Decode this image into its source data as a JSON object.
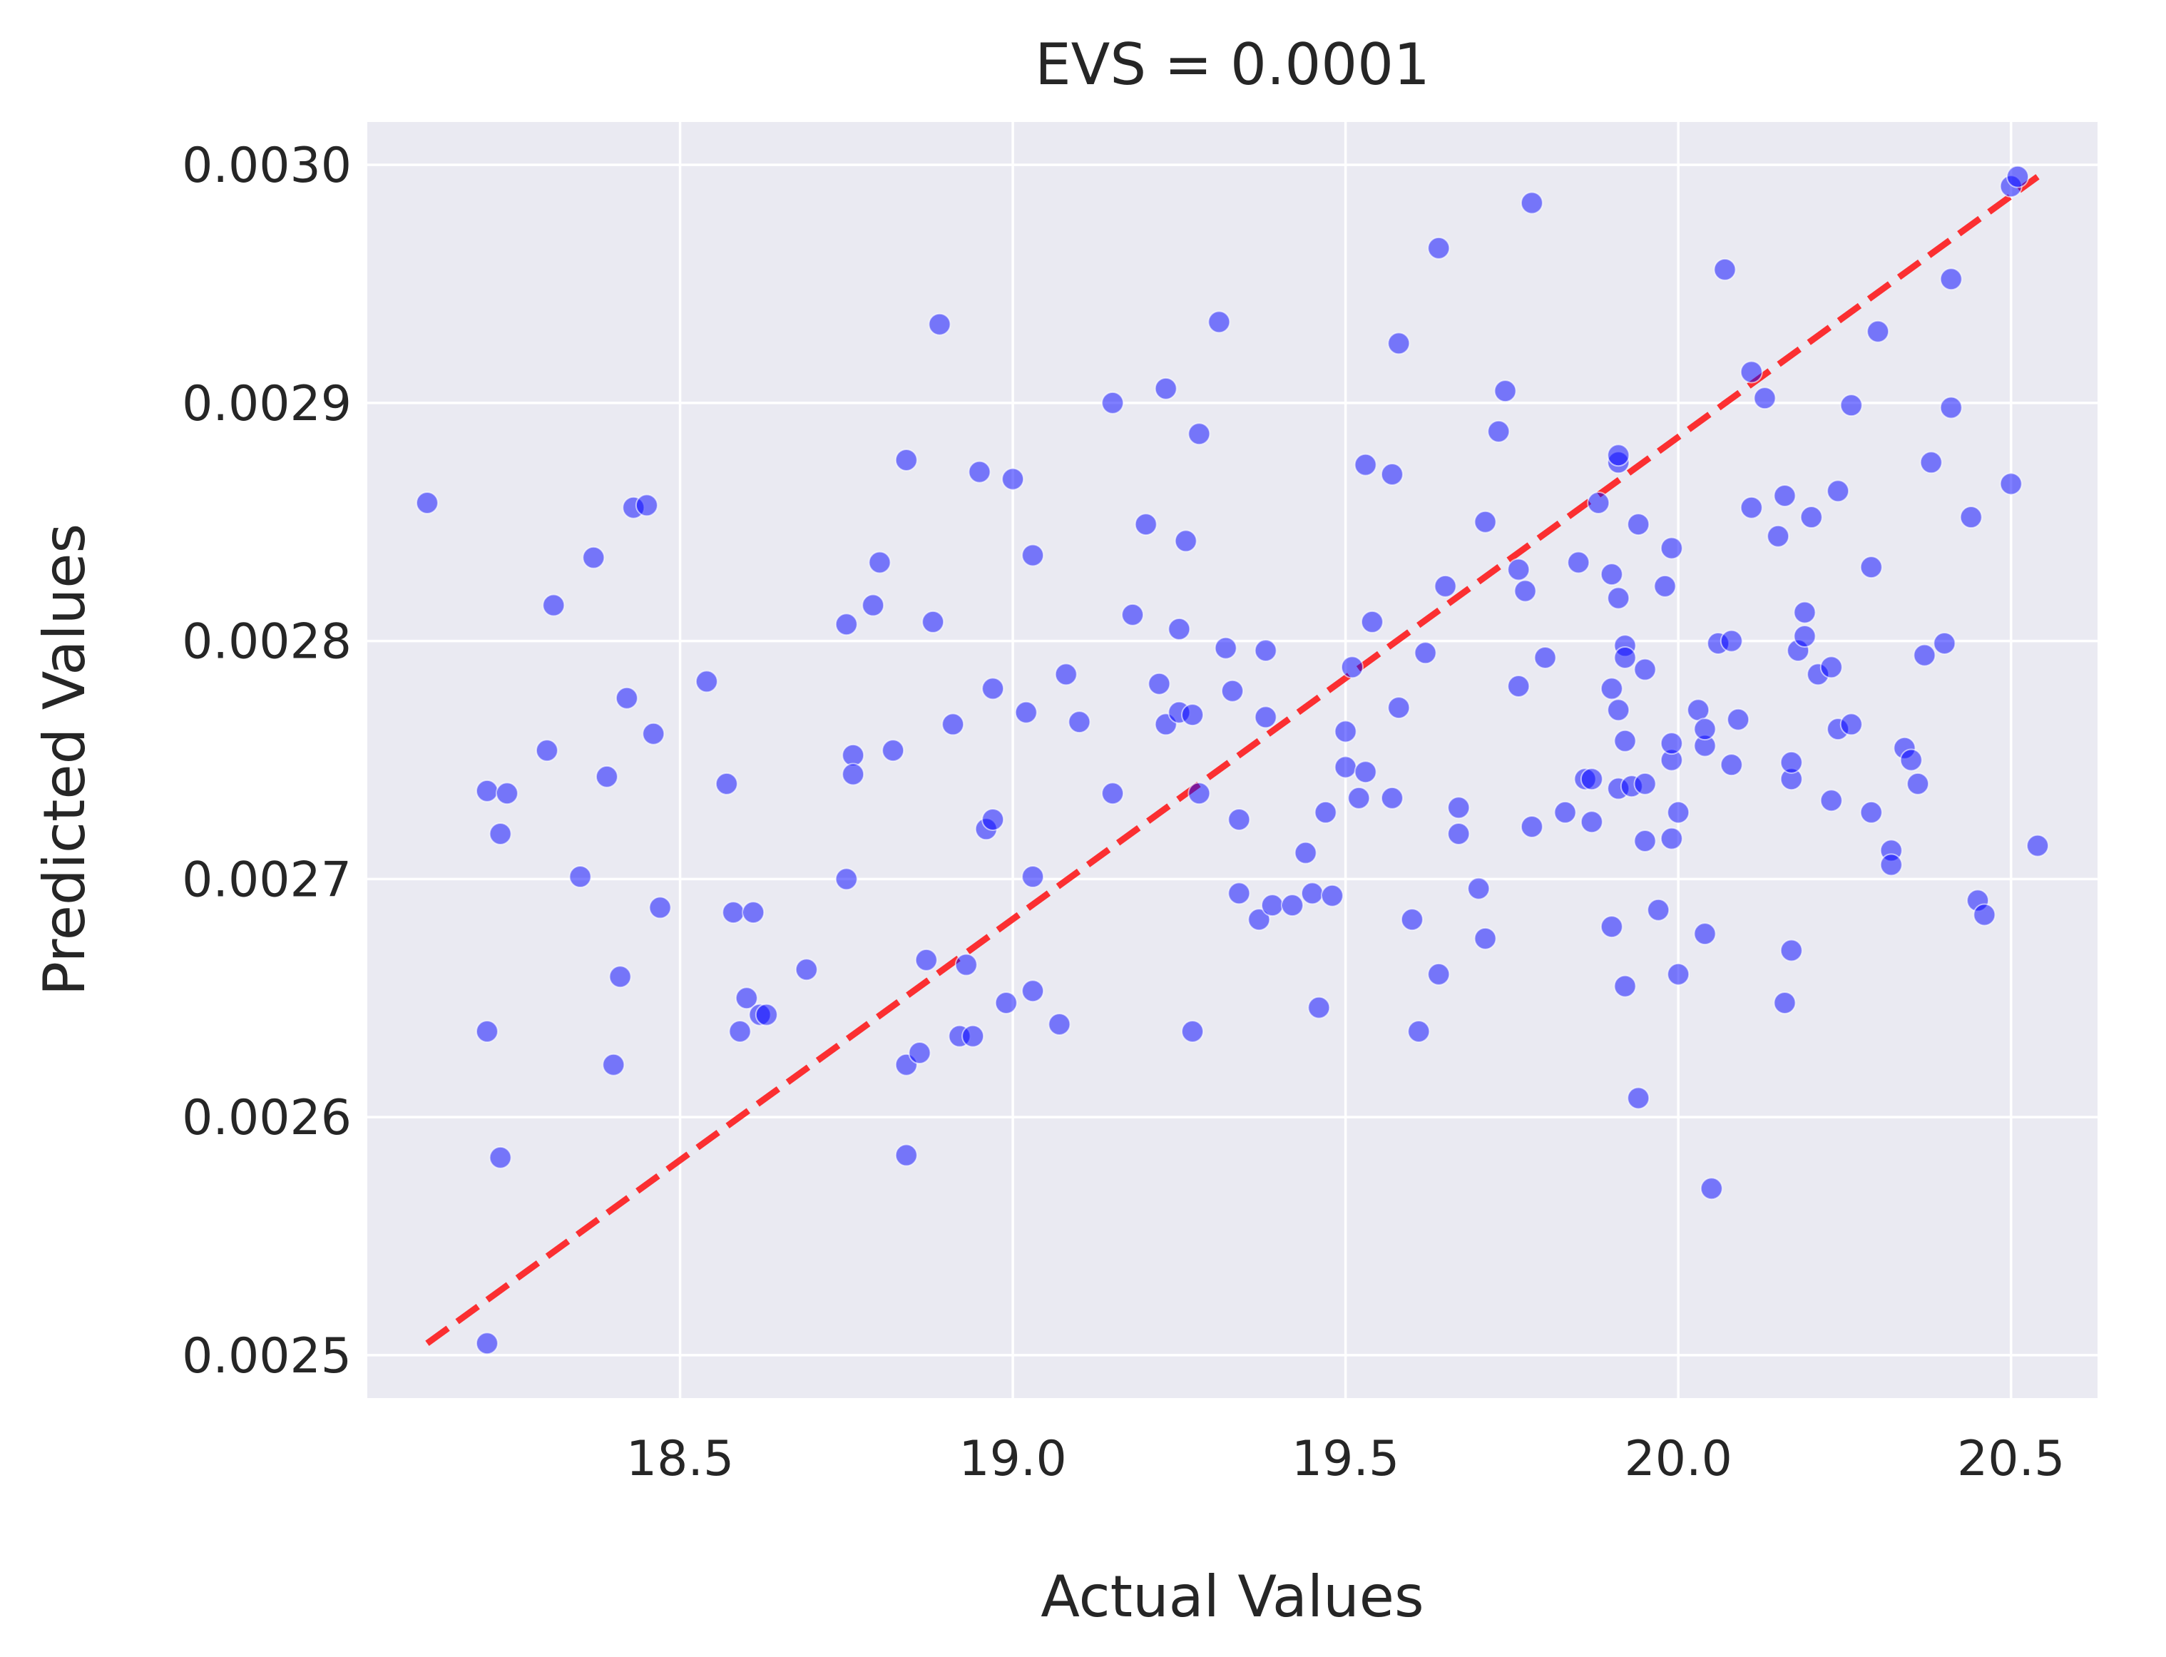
{
  "chart_data": {
    "type": "scatter",
    "title": "EVS = 0.0001",
    "xlabel": "Actual Values",
    "ylabel": "Predicted Values",
    "xlim": [
      18.03,
      20.63
    ],
    "ylim": [
      0.002482,
      0.003018
    ],
    "xticks": [
      18.5,
      19.0,
      19.5,
      20.0,
      20.5
    ],
    "xtick_labels": [
      "18.5",
      "19.0",
      "19.5",
      "20.0",
      "20.5"
    ],
    "yticks": [
      0.0025,
      0.0026,
      0.0027,
      0.0028,
      0.0029,
      0.003
    ],
    "ytick_labels": [
      "0.0025",
      "0.0026",
      "0.0027",
      "0.0028",
      "0.0029",
      "0.0030"
    ],
    "grid": true,
    "background": "#eaeaf2",
    "point_color": "#0000ff",
    "line_color": "#ff0000",
    "reference_line": {
      "x": [
        18.12,
        20.54
      ],
      "y": [
        0.002505,
        0.002995
      ],
      "style": "dashed"
    },
    "points": [
      [
        18.12,
        0.002858
      ],
      [
        18.21,
        0.002737
      ],
      [
        18.21,
        0.002636
      ],
      [
        18.21,
        0.002505
      ],
      [
        18.23,
        0.002719
      ],
      [
        18.23,
        0.002583
      ],
      [
        18.24,
        0.002736
      ],
      [
        18.3,
        0.002754
      ],
      [
        18.31,
        0.002815
      ],
      [
        18.35,
        0.002701
      ],
      [
        18.37,
        0.002835
      ],
      [
        18.39,
        0.002743
      ],
      [
        18.4,
        0.002622
      ],
      [
        18.41,
        0.002659
      ],
      [
        18.42,
        0.002776
      ],
      [
        18.43,
        0.002856
      ],
      [
        18.45,
        0.002857
      ],
      [
        18.46,
        0.002761
      ],
      [
        18.47,
        0.002688
      ],
      [
        18.54,
        0.002783
      ],
      [
        18.57,
        0.00274
      ],
      [
        18.58,
        0.002686
      ],
      [
        18.59,
        0.002636
      ],
      [
        18.6,
        0.00265
      ],
      [
        18.61,
        0.002686
      ],
      [
        18.62,
        0.002643
      ],
      [
        18.63,
        0.002643
      ],
      [
        18.69,
        0.002662
      ],
      [
        18.75,
        0.002807
      ],
      [
        18.75,
        0.0027
      ],
      [
        18.76,
        0.002752
      ],
      [
        18.76,
        0.002744
      ],
      [
        18.79,
        0.002815
      ],
      [
        18.8,
        0.002833
      ],
      [
        18.82,
        0.002754
      ],
      [
        18.84,
        0.002876
      ],
      [
        18.84,
        0.002622
      ],
      [
        18.84,
        0.002584
      ],
      [
        18.86,
        0.002627
      ],
      [
        18.87,
        0.002666
      ],
      [
        18.88,
        0.002808
      ],
      [
        18.89,
        0.002933
      ],
      [
        18.91,
        0.002765
      ],
      [
        18.92,
        0.002634
      ],
      [
        18.93,
        0.002664
      ],
      [
        18.94,
        0.002634
      ],
      [
        18.95,
        0.002871
      ],
      [
        18.96,
        0.002721
      ],
      [
        18.97,
        0.00278
      ],
      [
        18.97,
        0.002725
      ],
      [
        18.99,
        0.002648
      ],
      [
        19.0,
        0.002868
      ],
      [
        19.02,
        0.00277
      ],
      [
        19.03,
        0.002701
      ],
      [
        19.03,
        0.002836
      ],
      [
        19.03,
        0.002653
      ],
      [
        19.07,
        0.002639
      ],
      [
        19.08,
        0.002786
      ],
      [
        19.1,
        0.002766
      ],
      [
        19.15,
        0.0029
      ],
      [
        19.15,
        0.002736
      ],
      [
        19.18,
        0.002811
      ],
      [
        19.2,
        0.002849
      ],
      [
        19.22,
        0.002782
      ],
      [
        19.23,
        0.002906
      ],
      [
        19.23,
        0.002765
      ],
      [
        19.25,
        0.002805
      ],
      [
        19.25,
        0.00277
      ],
      [
        19.26,
        0.002842
      ],
      [
        19.27,
        0.002636
      ],
      [
        19.27,
        0.002769
      ],
      [
        19.28,
        0.002736
      ],
      [
        19.28,
        0.002887
      ],
      [
        19.31,
        0.002934
      ],
      [
        19.32,
        0.002797
      ],
      [
        19.33,
        0.002779
      ],
      [
        19.34,
        0.002725
      ],
      [
        19.34,
        0.002694
      ],
      [
        19.37,
        0.002683
      ],
      [
        19.38,
        0.002796
      ],
      [
        19.38,
        0.002768
      ],
      [
        19.39,
        0.002689
      ],
      [
        19.42,
        0.002689
      ],
      [
        19.44,
        0.002711
      ],
      [
        19.45,
        0.002694
      ],
      [
        19.46,
        0.002646
      ],
      [
        19.47,
        0.002728
      ],
      [
        19.48,
        0.002693
      ],
      [
        19.5,
        0.002762
      ],
      [
        19.5,
        0.002747
      ],
      [
        19.51,
        0.002789
      ],
      [
        19.52,
        0.002734
      ],
      [
        19.53,
        0.002745
      ],
      [
        19.53,
        0.002874
      ],
      [
        19.54,
        0.002808
      ],
      [
        19.57,
        0.002734
      ],
      [
        19.57,
        0.00287
      ],
      [
        19.58,
        0.002772
      ],
      [
        19.58,
        0.002925
      ],
      [
        19.6,
        0.002683
      ],
      [
        19.61,
        0.002636
      ],
      [
        19.62,
        0.002795
      ],
      [
        19.64,
        0.002965
      ],
      [
        19.64,
        0.00266
      ],
      [
        19.65,
        0.002823
      ],
      [
        19.67,
        0.002719
      ],
      [
        19.67,
        0.00273
      ],
      [
        19.7,
        0.002696
      ],
      [
        19.71,
        0.002675
      ],
      [
        19.71,
        0.00285
      ],
      [
        19.73,
        0.002888
      ],
      [
        19.74,
        0.002905
      ],
      [
        19.76,
        0.00283
      ],
      [
        19.76,
        0.002781
      ],
      [
        19.77,
        0.002821
      ],
      [
        19.78,
        0.002722
      ],
      [
        19.78,
        0.002984
      ],
      [
        19.8,
        0.002793
      ],
      [
        19.83,
        0.002728
      ],
      [
        19.85,
        0.002833
      ],
      [
        19.86,
        0.002742
      ],
      [
        19.87,
        0.002742
      ],
      [
        19.87,
        0.002724
      ],
      [
        19.88,
        0.002858
      ],
      [
        19.9,
        0.002828
      ],
      [
        19.9,
        0.00278
      ],
      [
        19.9,
        0.00268
      ],
      [
        19.91,
        0.002875
      ],
      [
        19.91,
        0.002878
      ],
      [
        19.91,
        0.002818
      ],
      [
        19.91,
        0.002771
      ],
      [
        19.91,
        0.002738
      ],
      [
        19.92,
        0.002758
      ],
      [
        19.92,
        0.002798
      ],
      [
        19.92,
        0.002655
      ],
      [
        19.92,
        0.002793
      ],
      [
        19.93,
        0.002739
      ],
      [
        19.94,
        0.002849
      ],
      [
        19.94,
        0.002608
      ],
      [
        19.95,
        0.002716
      ],
      [
        19.95,
        0.002788
      ],
      [
        19.95,
        0.00274
      ],
      [
        19.97,
        0.002687
      ],
      [
        19.98,
        0.002823
      ],
      [
        19.99,
        0.002717
      ],
      [
        19.99,
        0.00275
      ],
      [
        19.99,
        0.002757
      ],
      [
        19.99,
        0.002839
      ],
      [
        20.0,
        0.00266
      ],
      [
        20.0,
        0.002728
      ],
      [
        20.03,
        0.002771
      ],
      [
        20.04,
        0.002756
      ],
      [
        20.04,
        0.002763
      ],
      [
        20.04,
        0.002677
      ],
      [
        20.05,
        0.00257
      ],
      [
        20.06,
        0.002799
      ],
      [
        20.07,
        0.002956
      ],
      [
        20.08,
        0.002748
      ],
      [
        20.08,
        0.0028
      ],
      [
        20.09,
        0.002767
      ],
      [
        20.11,
        0.002913
      ],
      [
        20.11,
        0.002856
      ],
      [
        20.13,
        0.002902
      ],
      [
        20.15,
        0.002844
      ],
      [
        20.16,
        0.002648
      ],
      [
        20.16,
        0.002861
      ],
      [
        20.17,
        0.00267
      ],
      [
        20.17,
        0.002742
      ],
      [
        20.17,
        0.002749
      ],
      [
        20.18,
        0.002796
      ],
      [
        20.19,
        0.002802
      ],
      [
        20.19,
        0.002812
      ],
      [
        20.2,
        0.002852
      ],
      [
        20.21,
        0.002786
      ],
      [
        20.23,
        0.002789
      ],
      [
        20.23,
        0.002733
      ],
      [
        20.24,
        0.002863
      ],
      [
        20.24,
        0.002763
      ],
      [
        20.26,
        0.002765
      ],
      [
        20.26,
        0.002899
      ],
      [
        20.29,
        0.002728
      ],
      [
        20.29,
        0.002831
      ],
      [
        20.3,
        0.00293
      ],
      [
        20.32,
        0.002712
      ],
      [
        20.32,
        0.002706
      ],
      [
        20.34,
        0.002755
      ],
      [
        20.35,
        0.00275
      ],
      [
        20.36,
        0.00274
      ],
      [
        20.37,
        0.002794
      ],
      [
        20.38,
        0.002875
      ],
      [
        20.4,
        0.002799
      ],
      [
        20.41,
        0.002952
      ],
      [
        20.41,
        0.002898
      ],
      [
        20.44,
        0.002852
      ],
      [
        20.45,
        0.002691
      ],
      [
        20.46,
        0.002685
      ],
      [
        20.5,
        0.002991
      ],
      [
        20.5,
        0.002866
      ],
      [
        20.51,
        0.002995
      ],
      [
        20.54,
        0.002714
      ]
    ]
  }
}
